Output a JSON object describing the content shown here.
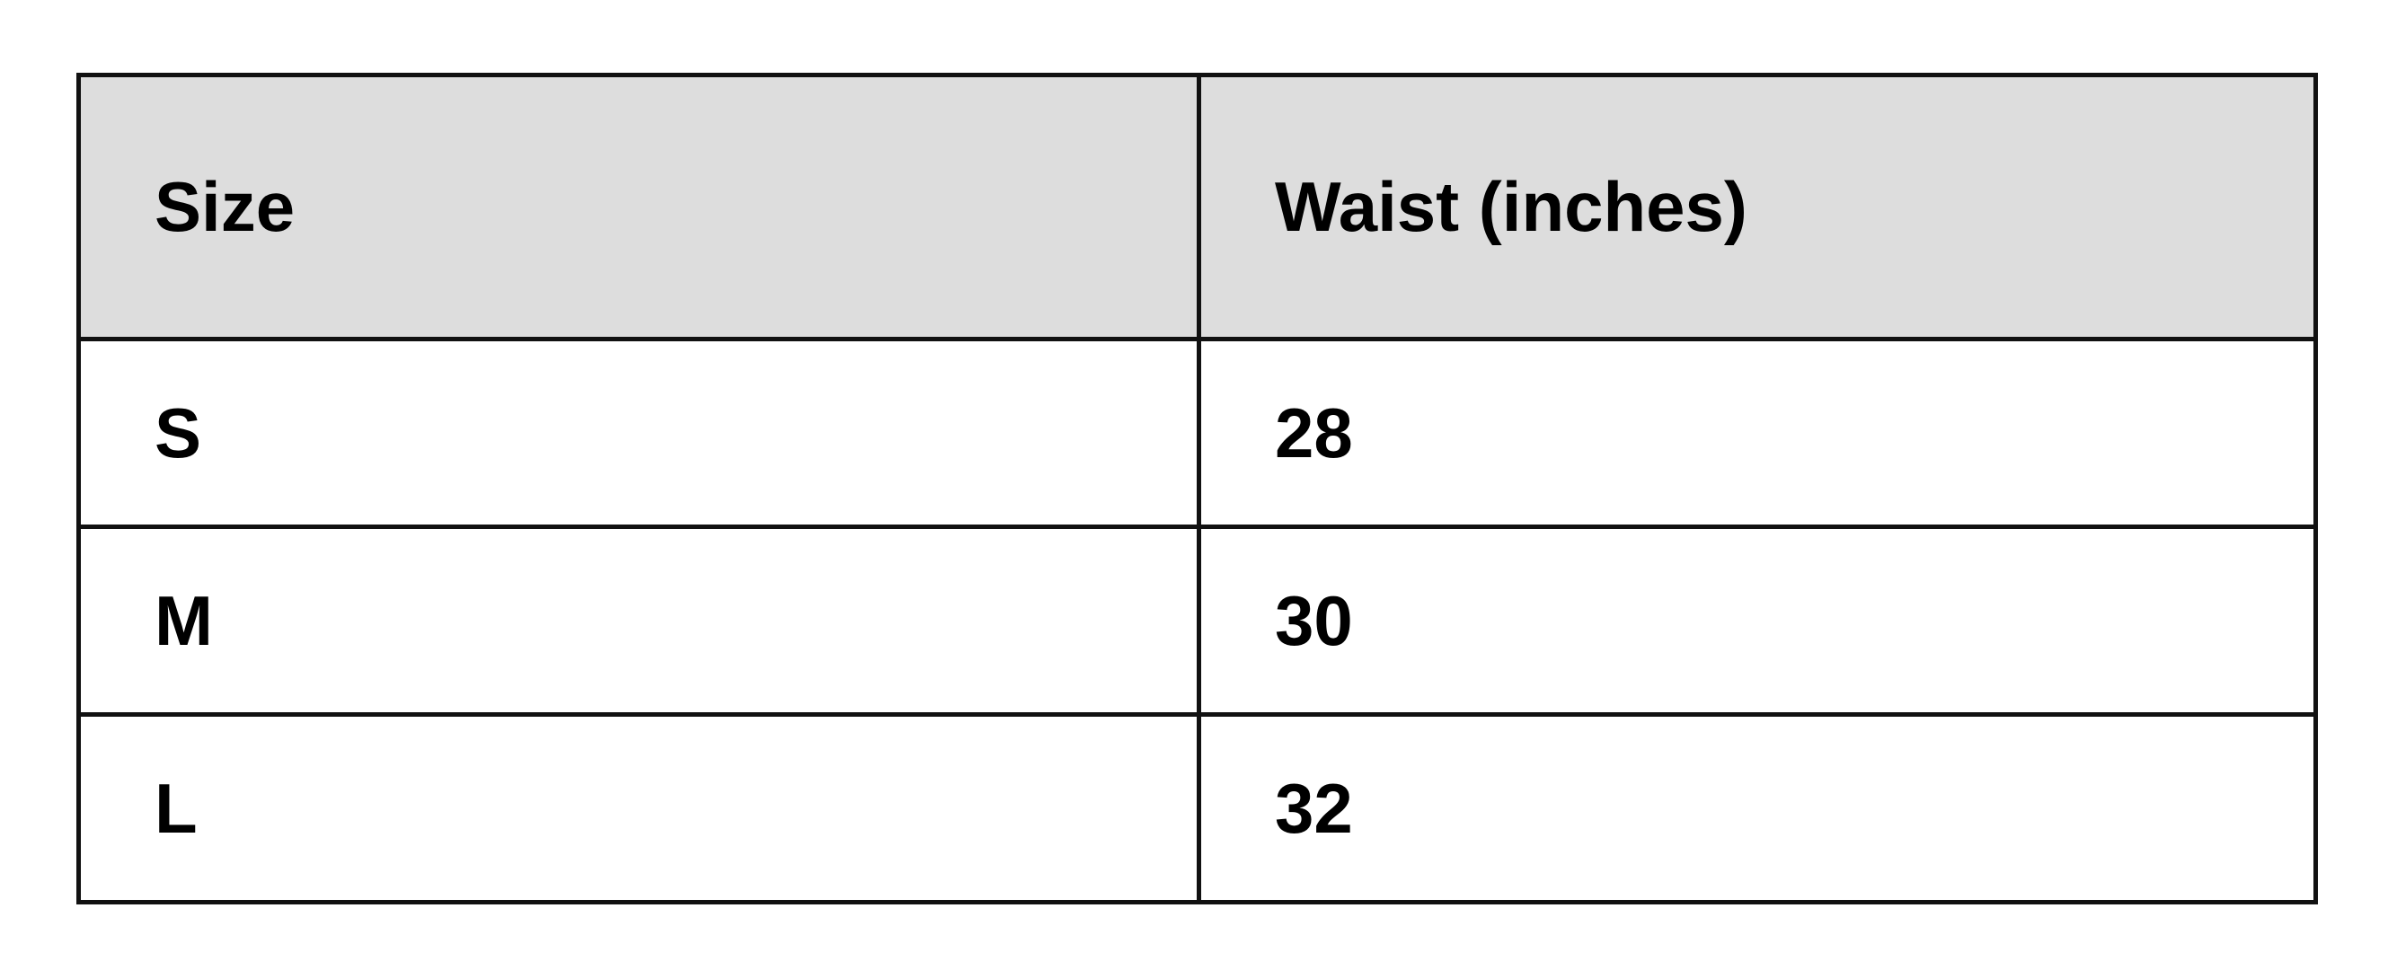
{
  "table": {
    "headers": [
      "Size",
      "Waist (inches)"
    ],
    "rows": [
      [
        "S",
        "28"
      ],
      [
        "M",
        "30"
      ],
      [
        "L",
        "32"
      ]
    ],
    "header_background": "#dddddd",
    "border_color": "#111111"
  }
}
